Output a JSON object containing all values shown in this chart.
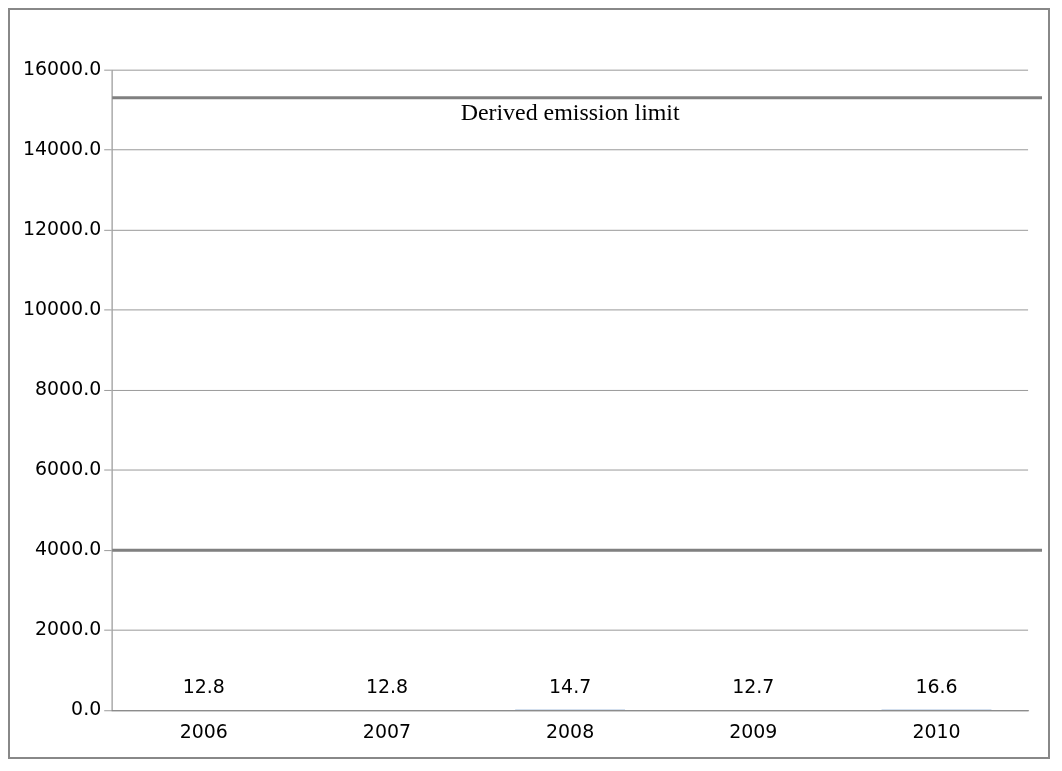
{
  "chart_data": {
    "type": "bar",
    "categories": [
      "2006",
      "2007",
      "2008",
      "2009",
      "2010"
    ],
    "values": [
      12.8,
      12.8,
      14.7,
      12.7,
      16.6
    ],
    "color": "#4f81bd",
    "data_labels": true,
    "ylim": [
      0,
      16000
    ],
    "yticks": [
      {
        "value": 0,
        "label": "0.0"
      },
      {
        "value": 2000,
        "label": "2000.0"
      },
      {
        "value": 4000,
        "label": "4000.0"
      },
      {
        "value": 6000,
        "label": "6000.0"
      },
      {
        "value": 8000,
        "label": "8000.0"
      },
      {
        "value": 10000,
        "label": "10000.0"
      },
      {
        "value": 12000,
        "label": "12000.0"
      },
      {
        "value": 14000,
        "label": "14000.0"
      },
      {
        "value": 16000,
        "label": "16000.0"
      }
    ],
    "grid": "y",
    "legend": false,
    "ref_lines": [
      {
        "axis": "y",
        "value": 15300,
        "label": "Derived emission limit",
        "color": "#808080"
      },
      {
        "axis": "y",
        "value": 4000,
        "color": "#808080"
      }
    ]
  }
}
